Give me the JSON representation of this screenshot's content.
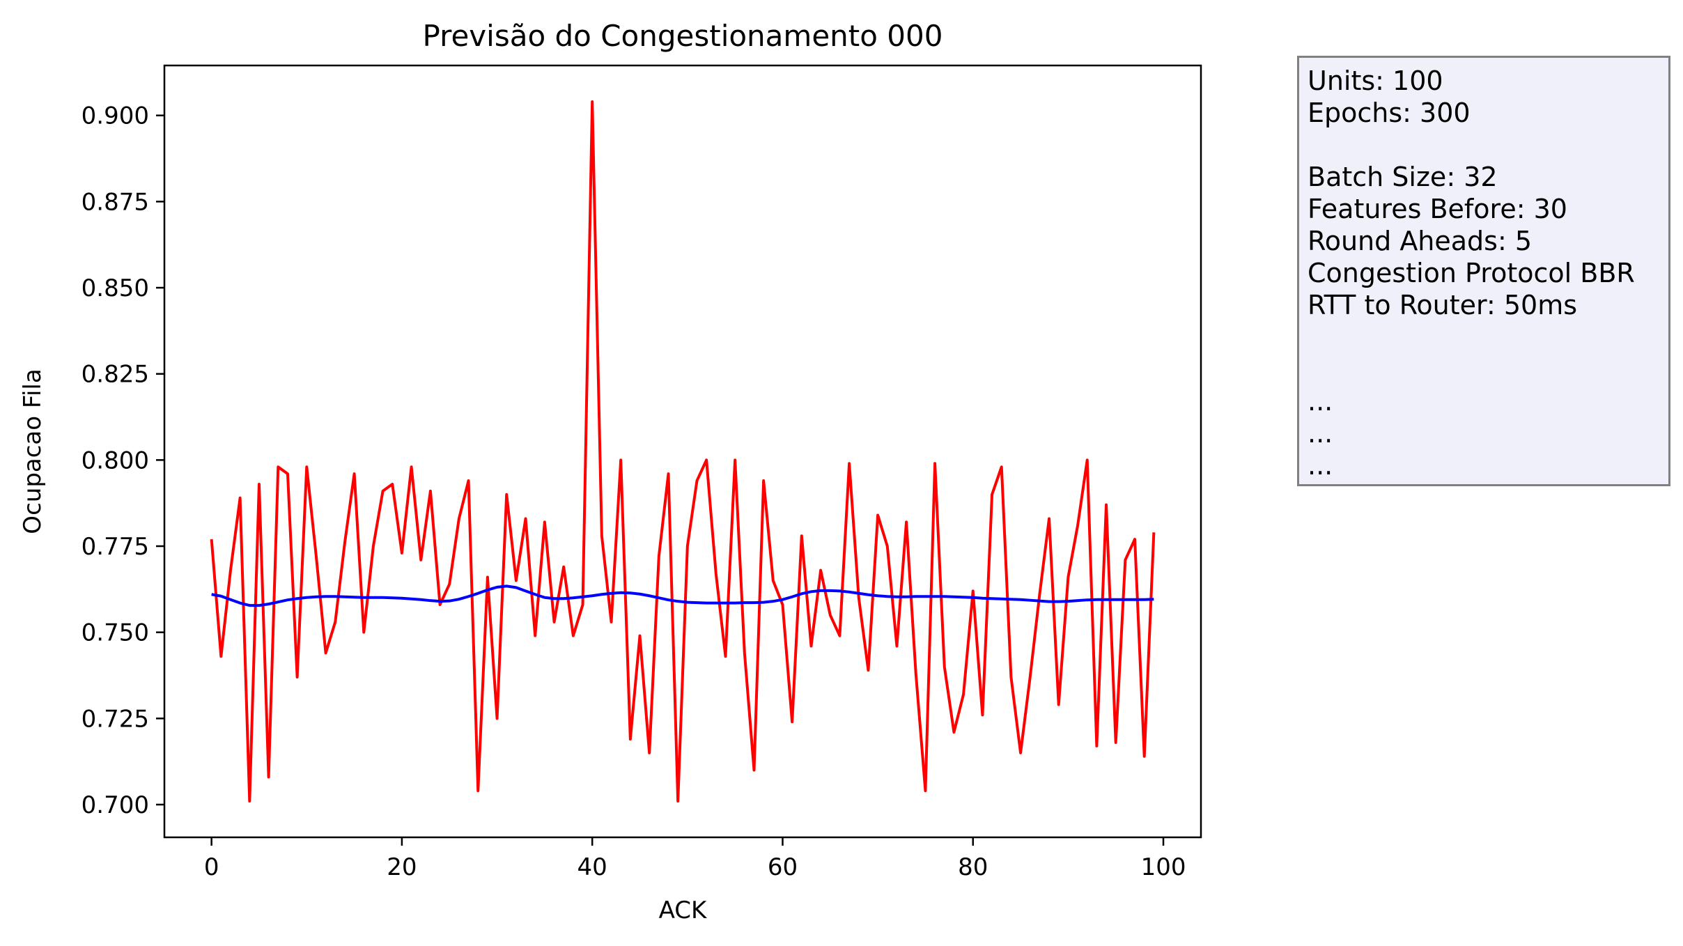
{
  "chart_data": {
    "type": "line",
    "title": "Previsão do Congestionamento 000",
    "xlabel": "ACK",
    "ylabel": "Ocupacao Fila",
    "xlim": [
      -4.95,
      103.95
    ],
    "ylim": [
      0.6905,
      0.9145
    ],
    "xticks": [
      0,
      20,
      40,
      60,
      80,
      100
    ],
    "yticks": [
      0.7,
      0.725,
      0.75,
      0.775,
      0.8,
      0.825,
      0.85,
      0.875,
      0.9
    ],
    "ytick_labels": [
      "0.700",
      "0.725",
      "0.750",
      "0.775",
      "0.800",
      "0.825",
      "0.850",
      "0.875",
      "0.900"
    ],
    "grid": false,
    "series": [
      {
        "color": "#ff0000",
        "x": [
          0,
          1,
          2,
          3,
          4,
          5,
          6,
          7,
          8,
          9,
          10,
          11,
          12,
          13,
          14,
          15,
          16,
          17,
          18,
          19,
          20,
          21,
          22,
          23,
          24,
          25,
          26,
          27,
          28,
          29,
          30,
          31,
          32,
          33,
          34,
          35,
          36,
          37,
          38,
          39,
          40,
          41,
          42,
          43,
          44,
          45,
          46,
          47,
          48,
          49,
          50,
          51,
          52,
          53,
          54,
          55,
          56,
          57,
          58,
          59,
          60,
          61,
          62,
          63,
          64,
          65,
          66,
          67,
          68,
          69,
          70,
          71,
          72,
          73,
          74,
          75,
          76,
          77,
          78,
          79,
          80,
          81,
          82,
          83,
          84,
          85,
          86,
          87,
          88,
          89,
          90,
          91,
          92,
          93,
          94,
          95,
          96,
          97,
          98,
          99
        ],
        "values": [
          0.777,
          0.743,
          0.768,
          0.789,
          0.701,
          0.793,
          0.708,
          0.798,
          0.796,
          0.737,
          0.798,
          0.772,
          0.744,
          0.753,
          0.776,
          0.796,
          0.75,
          0.775,
          0.791,
          0.793,
          0.773,
          0.798,
          0.771,
          0.791,
          0.758,
          0.764,
          0.783,
          0.794,
          0.704,
          0.766,
          0.725,
          0.79,
          0.765,
          0.783,
          0.749,
          0.782,
          0.753,
          0.769,
          0.749,
          0.758,
          0.904,
          0.778,
          0.753,
          0.8,
          0.719,
          0.749,
          0.715,
          0.772,
          0.796,
          0.701,
          0.775,
          0.794,
          0.8,
          0.767,
          0.743,
          0.8,
          0.744,
          0.71,
          0.794,
          0.765,
          0.758,
          0.724,
          0.778,
          0.746,
          0.768,
          0.755,
          0.749,
          0.799,
          0.76,
          0.739,
          0.784,
          0.775,
          0.746,
          0.782,
          0.738,
          0.704,
          0.799,
          0.74,
          0.721,
          0.732,
          0.762,
          0.726,
          0.79,
          0.798,
          0.737,
          0.715,
          0.737,
          0.761,
          0.783,
          0.729,
          0.766,
          0.781,
          0.8,
          0.717,
          0.787,
          0.718,
          0.771,
          0.777,
          0.714,
          0.779
        ]
      },
      {
        "color": "#0000ff",
        "x": [
          0,
          1,
          2,
          3,
          4,
          5,
          6,
          7,
          8,
          9,
          10,
          11,
          12,
          13,
          14,
          15,
          16,
          17,
          18,
          19,
          20,
          21,
          22,
          23,
          24,
          25,
          26,
          27,
          28,
          29,
          30,
          31,
          32,
          33,
          34,
          35,
          36,
          37,
          38,
          39,
          40,
          41,
          42,
          43,
          44,
          45,
          46,
          47,
          48,
          49,
          50,
          51,
          52,
          53,
          54,
          55,
          56,
          57,
          58,
          59,
          60,
          61,
          62,
          63,
          64,
          65,
          66,
          67,
          68,
          69,
          70,
          71,
          72,
          73,
          74,
          75,
          76,
          77,
          78,
          79,
          80,
          81,
          82,
          83,
          84,
          85,
          86,
          87,
          88,
          89,
          90,
          91,
          92,
          93,
          94,
          95,
          96,
          97,
          98,
          99
        ],
        "values": [
          0.761,
          0.7605,
          0.7595,
          0.7585,
          0.7578,
          0.7578,
          0.7582,
          0.7588,
          0.7594,
          0.7598,
          0.7601,
          0.7603,
          0.7604,
          0.7604,
          0.7603,
          0.7602,
          0.7601,
          0.7601,
          0.7601,
          0.76,
          0.7599,
          0.7597,
          0.7595,
          0.7592,
          0.759,
          0.7591,
          0.7596,
          0.7604,
          0.7613,
          0.7623,
          0.7631,
          0.7634,
          0.763,
          0.762,
          0.761,
          0.7601,
          0.7598,
          0.7598,
          0.76,
          0.7603,
          0.7606,
          0.761,
          0.7613,
          0.7615,
          0.7614,
          0.7611,
          0.7606,
          0.76,
          0.7594,
          0.759,
          0.7587,
          0.7586,
          0.7585,
          0.7585,
          0.7585,
          0.7585,
          0.7586,
          0.7586,
          0.7587,
          0.759,
          0.7595,
          0.7603,
          0.7612,
          0.7618,
          0.7621,
          0.7621,
          0.762,
          0.7617,
          0.7613,
          0.7609,
          0.7606,
          0.7604,
          0.7603,
          0.7603,
          0.7604,
          0.7604,
          0.7604,
          0.7604,
          0.7603,
          0.7602,
          0.7601,
          0.7599,
          0.7598,
          0.7597,
          0.7596,
          0.7595,
          0.7593,
          0.7591,
          0.7589,
          0.7589,
          0.759,
          0.7592,
          0.7594,
          0.7595,
          0.7595,
          0.7595,
          0.7595,
          0.7595,
          0.7595,
          0.7596
        ]
      }
    ]
  },
  "info_box": {
    "lines": [
      "Units: 100",
      "Epochs: 300",
      "",
      "Batch Size: 32",
      "Features Before: 30",
      "Round Aheads: 5",
      "Congestion Protocol BBR",
      "RTT to Router: 50ms",
      "",
      "",
      "...",
      "...",
      "..."
    ]
  }
}
